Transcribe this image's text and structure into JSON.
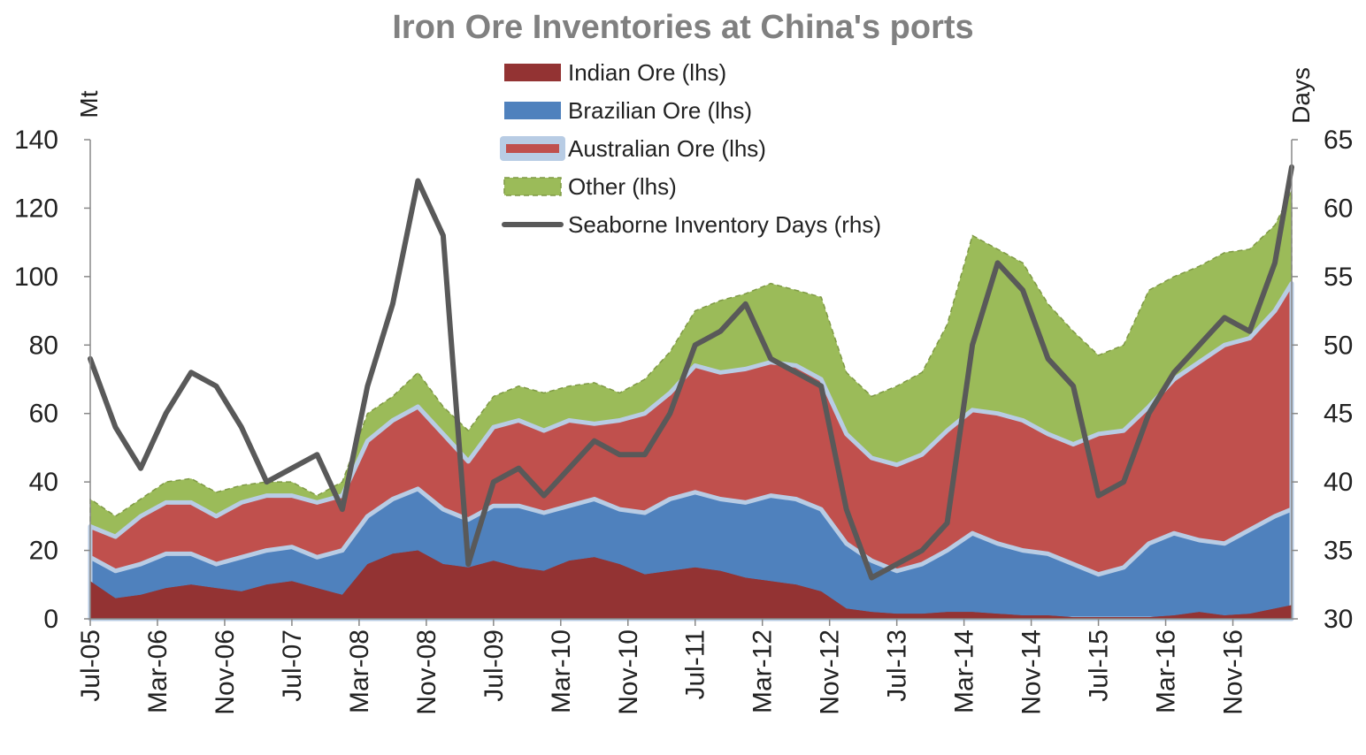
{
  "chart_data": {
    "type": "area",
    "title": "Iron Ore Inventories at China's ports",
    "y_left_label": "Mt",
    "y_right_label": "Days",
    "y_left_range": [
      0,
      140
    ],
    "y_right_range": [
      30,
      65
    ],
    "y_left_ticks": [
      "0",
      "20",
      "40",
      "60",
      "80",
      "100",
      "120",
      "140"
    ],
    "y_right_ticks": [
      "30",
      "35",
      "40",
      "45",
      "50",
      "55",
      "60",
      "65"
    ],
    "x_tick_labels": [
      "Jul-05",
      "Mar-06",
      "Nov-06",
      "Jul-07",
      "Mar-08",
      "Nov-08",
      "Jul-09",
      "Mar-10",
      "Nov-10",
      "Jul-11",
      "Mar-12",
      "Nov-12",
      "Jul-13",
      "Mar-14",
      "Nov-14",
      "Jul-15",
      "Mar-16",
      "Nov-16"
    ],
    "x_range": [
      "Jul-05",
      "Jun-17"
    ],
    "grid": false,
    "legend_position": "top-center",
    "legend": [
      {
        "label": "Indian Ore (lhs)",
        "color": "#933333"
      },
      {
        "label": "Brazilian Ore (lhs)",
        "color": "#4f81bd"
      },
      {
        "label": "Australian Ore (lhs)",
        "color": "#c0504d"
      },
      {
        "label": "Other (lhs)",
        "color": "#9bbb59"
      },
      {
        "label": "Seaborne Inventory Days (rhs)",
        "color": "#595959"
      }
    ],
    "x": [
      "Jul-05",
      "Oct-05",
      "Jan-06",
      "Apr-06",
      "Jul-06",
      "Oct-06",
      "Jan-07",
      "Apr-07",
      "Jul-07",
      "Oct-07",
      "Jan-08",
      "Apr-08",
      "Jul-08",
      "Oct-08",
      "Jan-09",
      "Apr-09",
      "Jul-09",
      "Oct-09",
      "Jan-10",
      "Apr-10",
      "Jul-10",
      "Oct-10",
      "Jan-11",
      "Apr-11",
      "Jul-11",
      "Oct-11",
      "Jan-12",
      "Apr-12",
      "Jul-12",
      "Oct-12",
      "Jan-13",
      "Apr-13",
      "Jul-13",
      "Oct-13",
      "Jan-14",
      "Apr-14",
      "Jul-14",
      "Oct-14",
      "Jan-15",
      "Apr-15",
      "Jul-15",
      "Oct-15",
      "Jan-16",
      "Apr-16",
      "Jul-16",
      "Oct-16",
      "Jan-17",
      "Apr-17",
      "Jun-17"
    ],
    "series": [
      {
        "name": "Indian Ore (lhs)",
        "axis": "lhs",
        "color": "#933333",
        "values": [
          11,
          6,
          7,
          9,
          10,
          9,
          8,
          10,
          11,
          9,
          7,
          16,
          19,
          20,
          16,
          15,
          17,
          15,
          14,
          17,
          18,
          16,
          13,
          14,
          15,
          14,
          12,
          11,
          10,
          8,
          3,
          2,
          1.5,
          1.5,
          2,
          2,
          1.5,
          1,
          1,
          0.5,
          0.5,
          0.5,
          0.5,
          1,
          2,
          1,
          1.5,
          3,
          4
        ]
      },
      {
        "name": "Brazilian Ore (lhs)",
        "axis": "lhs",
        "color": "#4f81bd",
        "values": [
          18,
          14,
          16,
          19,
          19,
          16,
          18,
          20,
          21,
          18,
          20,
          30,
          35,
          38,
          32,
          29,
          33,
          33,
          31,
          33,
          35,
          32,
          31,
          35,
          37,
          35,
          34,
          36,
          35,
          32,
          22,
          17,
          14,
          16,
          20,
          25,
          22,
          20,
          19,
          16,
          13,
          15,
          22,
          25,
          23,
          22,
          26,
          30,
          32
        ]
      },
      {
        "name": "Australian Ore (lhs)",
        "axis": "lhs",
        "color": "#c0504d",
        "values": [
          27,
          24,
          30,
          34,
          34,
          30,
          34,
          36,
          36,
          34,
          36,
          52,
          58,
          62,
          54,
          46,
          56,
          58,
          55,
          58,
          57,
          58,
          60,
          66,
          74,
          72,
          73,
          75,
          74,
          70,
          54,
          47,
          45,
          48,
          55,
          61,
          60,
          58,
          54,
          51,
          54,
          55,
          62,
          70,
          75,
          80,
          82,
          90,
          98
        ]
      },
      {
        "name": "Other (lhs)",
        "axis": "lhs",
        "color": "#9bbb59",
        "values": [
          35,
          30,
          35,
          40,
          41,
          37,
          39,
          40,
          40,
          36,
          40,
          60,
          65,
          72,
          62,
          55,
          65,
          68,
          66,
          68,
          69,
          66,
          70,
          78,
          90,
          93,
          95,
          98,
          96,
          94,
          72,
          65,
          68,
          72,
          86,
          112,
          108,
          104,
          92,
          84,
          77,
          80,
          96,
          100,
          103,
          107,
          108,
          115,
          125
        ]
      },
      {
        "name": "Seaborne Inventory Days (rhs)",
        "axis": "rhs",
        "color": "#595959",
        "values": [
          49,
          44,
          41,
          45,
          48,
          47,
          44,
          40,
          41,
          42,
          38,
          47,
          53,
          62,
          58,
          34,
          40,
          41,
          39,
          41,
          43,
          42,
          42,
          45,
          50,
          51,
          53,
          49,
          48,
          47,
          38,
          33,
          34,
          35,
          37,
          50,
          56,
          54,
          49,
          47,
          39,
          40,
          45,
          48,
          50,
          52,
          51,
          56,
          63
        ]
      }
    ]
  }
}
